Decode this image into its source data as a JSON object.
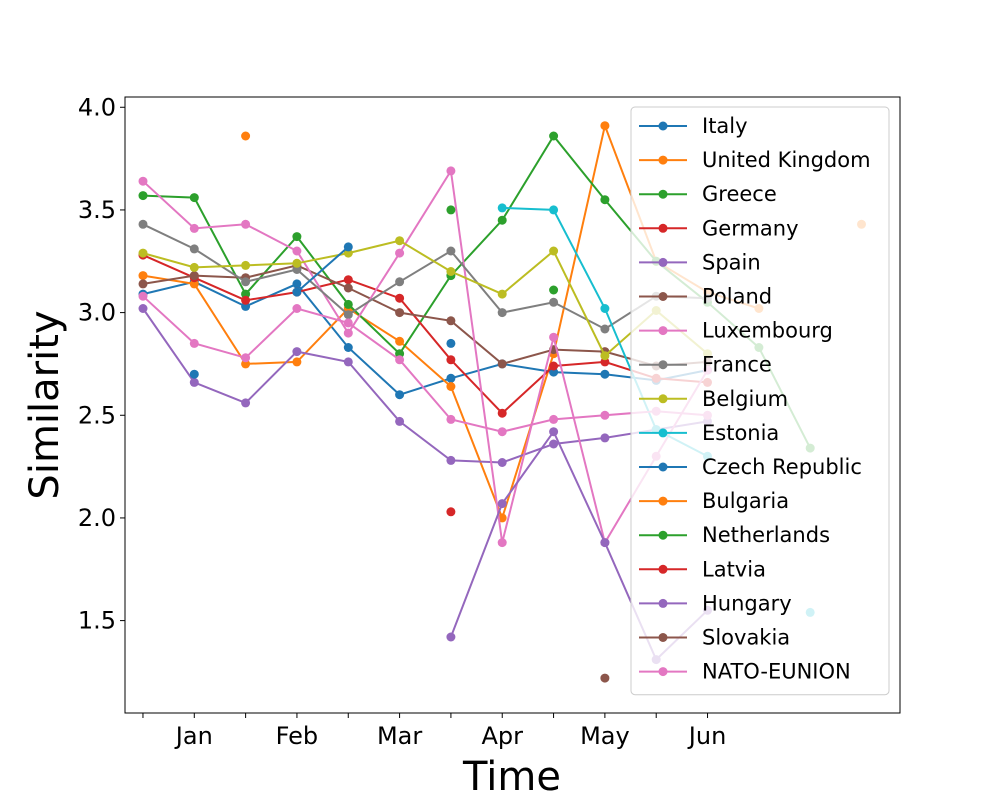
{
  "chart_data": {
    "type": "line",
    "xlabel": "Time",
    "ylabel": "Similarity",
    "x": [
      0,
      1,
      2,
      3,
      4,
      5,
      6,
      7,
      8,
      9,
      10,
      11,
      12,
      13,
      14
    ],
    "xlim": [
      -0.35,
      14.75
    ],
    "ylim": [
      1.05,
      4.05
    ],
    "x_ticks": [
      0,
      1,
      2,
      3,
      4,
      5,
      6,
      7,
      8,
      9,
      10,
      11
    ],
    "x_tick_labels": [
      "",
      "Jan",
      "",
      "Feb",
      "",
      "Mar",
      "",
      "Apr",
      "",
      "May",
      "",
      "Jun"
    ],
    "y_ticks": [
      1.5,
      2.0,
      2.5,
      3.0,
      3.5,
      4.0
    ],
    "y_tick_labels": [
      "1.5",
      "2.0",
      "2.5",
      "3.0",
      "3.5",
      "4.0"
    ],
    "grid": false,
    "legend_position": "top-right",
    "series": [
      {
        "name": "Italy",
        "color": "#1f77b4",
        "values": [
          3.09,
          3.15,
          3.03,
          3.14,
          2.83,
          2.6,
          2.68,
          2.75,
          2.71,
          2.7,
          2.67,
          2.72,
          null,
          null,
          null
        ]
      },
      {
        "name": "United Kingdom",
        "color": "#ff7f0e",
        "values": [
          3.18,
          3.14,
          2.75,
          2.76,
          3.02,
          2.86,
          2.64,
          2.0,
          2.8,
          3.91,
          3.25,
          3.1,
          3.02,
          null,
          3.43
        ]
      },
      {
        "name": "Greece",
        "color": "#2ca02c",
        "values": [
          3.57,
          3.56,
          3.09,
          3.37,
          3.04,
          2.8,
          3.18,
          3.45,
          3.86,
          3.55,
          3.25,
          3.05,
          2.83,
          2.34,
          null
        ]
      },
      {
        "name": "Germany",
        "color": "#d62728",
        "values": [
          3.28,
          3.17,
          3.06,
          3.1,
          3.16,
          3.07,
          2.77,
          2.51,
          2.74,
          2.76,
          2.68,
          2.66,
          null,
          null,
          null
        ]
      },
      {
        "name": "Spain",
        "color": "#9467bd",
        "values": [
          3.02,
          2.66,
          2.56,
          2.81,
          2.76,
          2.47,
          2.28,
          2.27,
          2.36,
          2.39,
          2.43,
          2.47,
          null,
          null,
          null
        ]
      },
      {
        "name": "Poland",
        "color": "#8c564b",
        "values": [
          3.14,
          3.18,
          3.17,
          3.23,
          3.12,
          3.0,
          2.96,
          2.75,
          2.82,
          2.81,
          2.74,
          2.76,
          null,
          null,
          null
        ]
      },
      {
        "name": "Luxembourg",
        "color": "#e377c2",
        "values": [
          3.64,
          3.41,
          3.43,
          3.3,
          2.9,
          3.29,
          3.69,
          1.88,
          2.88,
          1.88,
          2.3,
          2.72,
          null,
          null,
          null
        ]
      },
      {
        "name": "France",
        "color": "#7f7f7f",
        "values": [
          3.43,
          3.31,
          3.15,
          3.21,
          2.99,
          3.15,
          3.3,
          3.0,
          3.05,
          2.92,
          3.08,
          3.07,
          null,
          null,
          null
        ]
      },
      {
        "name": "Belgium",
        "color": "#bcbd22",
        "values": [
          3.29,
          3.22,
          3.23,
          3.24,
          3.29,
          3.35,
          3.2,
          3.09,
          3.3,
          2.79,
          3.01,
          2.8,
          null,
          null,
          null
        ]
      },
      {
        "name": "Estonia",
        "color": "#17becf",
        "values": [
          null,
          null,
          null,
          null,
          null,
          null,
          null,
          3.51,
          3.5,
          3.02,
          2.43,
          2.3,
          null,
          1.54,
          null
        ]
      },
      {
        "name": "Czech Republic",
        "color": "#1f77b4",
        "values": [
          null,
          2.7,
          null,
          3.1,
          3.32,
          null,
          2.85,
          null,
          null,
          null,
          null,
          null,
          null,
          null,
          null
        ]
      },
      {
        "name": "Bulgaria",
        "color": "#ff7f0e",
        "values": [
          null,
          null,
          3.86,
          null,
          null,
          null,
          null,
          null,
          null,
          null,
          null,
          null,
          null,
          null,
          null
        ]
      },
      {
        "name": "Netherlands",
        "color": "#2ca02c",
        "values": [
          null,
          null,
          null,
          null,
          null,
          null,
          3.5,
          null,
          3.11,
          null,
          null,
          null,
          null,
          null,
          null
        ]
      },
      {
        "name": "Latvia",
        "color": "#d62728",
        "values": [
          null,
          null,
          null,
          null,
          null,
          null,
          2.03,
          null,
          null,
          null,
          null,
          null,
          null,
          null,
          null
        ]
      },
      {
        "name": "Hungary",
        "color": "#9467bd",
        "values": [
          null,
          null,
          null,
          null,
          null,
          null,
          1.42,
          2.07,
          2.42,
          1.88,
          1.31,
          1.55,
          null,
          null,
          null
        ]
      },
      {
        "name": "Slovakia",
        "color": "#8c564b",
        "values": [
          null,
          null,
          null,
          null,
          null,
          null,
          null,
          null,
          null,
          1.22,
          null,
          null,
          null,
          null,
          null
        ]
      },
      {
        "name": "NATO-EUNION",
        "color": "#e377c2",
        "values": [
          3.08,
          2.85,
          2.78,
          3.02,
          2.95,
          2.77,
          2.48,
          2.42,
          2.48,
          2.5,
          2.52,
          2.5,
          null,
          null,
          null
        ]
      }
    ]
  }
}
